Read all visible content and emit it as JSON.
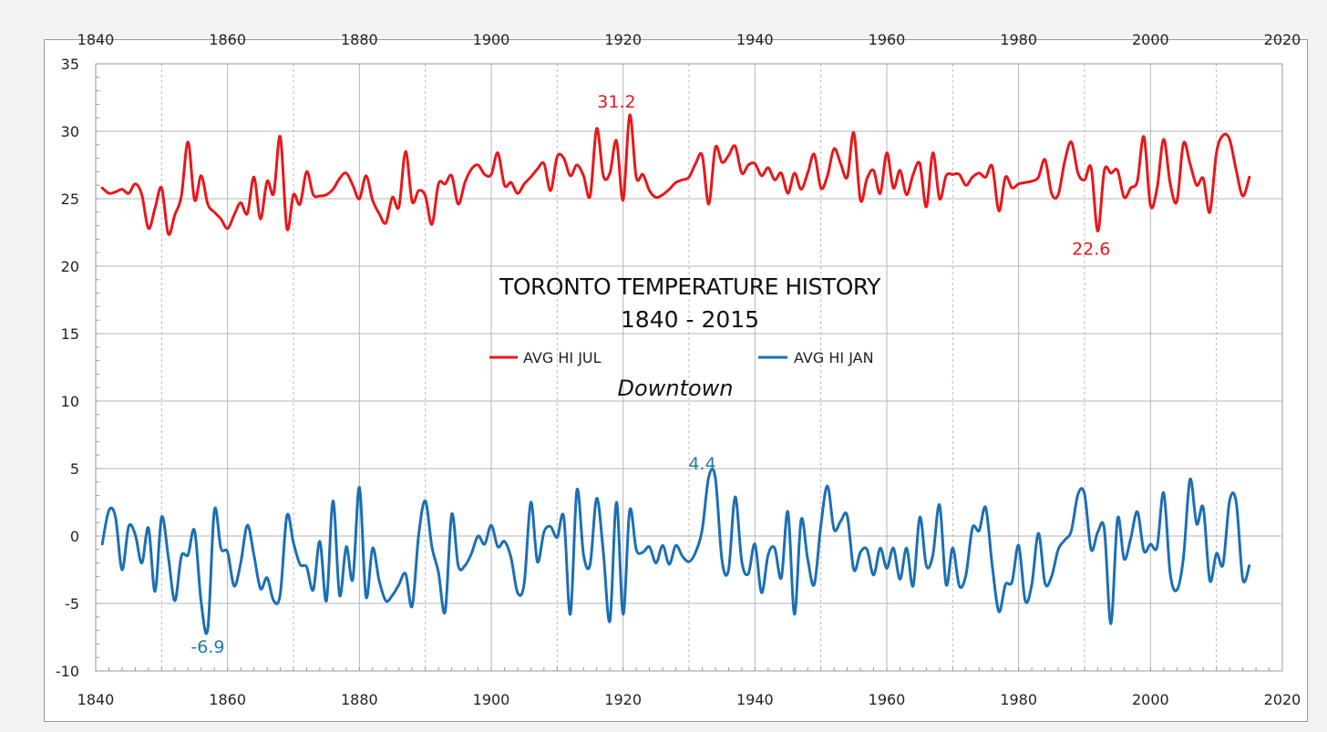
{
  "chart_data": {
    "type": "line",
    "title": "TORONTO TEMPERATURE HISTORY",
    "subtitle": "1840 - 2015",
    "location_label": "Downtown",
    "xlim": [
      1840,
      2020
    ],
    "ylim": [
      -10,
      35
    ],
    "x_ticks": [
      "1840",
      "1860",
      "1880",
      "1900",
      "1920",
      "1940",
      "1960",
      "1980",
      "2000",
      "2020"
    ],
    "y_ticks": [
      "-10",
      "-5",
      "0",
      "5",
      "10",
      "15",
      "20",
      "25",
      "30",
      "35"
    ],
    "legend": [
      "AVG HI JUL",
      "AVG HI JAN"
    ],
    "series": [
      {
        "name": "AVG HI JUL",
        "color": "#e8171b",
        "x": [
          1841,
          1842,
          1843,
          1844,
          1845,
          1846,
          1847,
          1848,
          1849,
          1850,
          1851,
          1852,
          1853,
          1854,
          1855,
          1856,
          1857,
          1858,
          1859,
          1860,
          1861,
          1862,
          1863,
          1864,
          1865,
          1866,
          1867,
          1868,
          1869,
          1870,
          1871,
          1872,
          1873,
          1874,
          1875,
          1876,
          1877,
          1878,
          1879,
          1880,
          1881,
          1882,
          1883,
          1884,
          1885,
          1886,
          1887,
          1888,
          1889,
          1890,
          1891,
          1892,
          1893,
          1894,
          1895,
          1896,
          1897,
          1898,
          1899,
          1900,
          1901,
          1902,
          1903,
          1904,
          1905,
          1906,
          1907,
          1908,
          1909,
          1910,
          1911,
          1912,
          1913,
          1914,
          1915,
          1916,
          1917,
          1918,
          1919,
          1920,
          1921,
          1922,
          1923,
          1924,
          1925,
          1926,
          1927,
          1928,
          1929,
          1930,
          1931,
          1932,
          1933,
          1934,
          1935,
          1936,
          1937,
          1938,
          1939,
          1940,
          1941,
          1942,
          1943,
          1944,
          1945,
          1946,
          1947,
          1948,
          1949,
          1950,
          1951,
          1952,
          1953,
          1954,
          1955,
          1956,
          1957,
          1958,
          1959,
          1960,
          1961,
          1962,
          1963,
          1964,
          1965,
          1966,
          1967,
          1968,
          1969,
          1970,
          1971,
          1972,
          1973,
          1974,
          1975,
          1976,
          1977,
          1978,
          1979,
          1980,
          1981,
          1982,
          1983,
          1984,
          1985,
          1986,
          1987,
          1988,
          1989,
          1990,
          1991,
          1992,
          1993,
          1994,
          1995,
          1996,
          1997,
          1998,
          1999,
          2000,
          2001,
          2002,
          2003,
          2004,
          2005,
          2006,
          2007,
          2008,
          2009,
          2010,
          2011,
          2012,
          2013,
          2014,
          2015
        ],
        "values": [
          25.8,
          25.4,
          25.5,
          25.7,
          25.4,
          26.1,
          25.3,
          22.8,
          24.3,
          25.8,
          22.4,
          23.8,
          25.2,
          29.2,
          24.9,
          26.7,
          24.6,
          24.0,
          23.5,
          22.8,
          23.8,
          24.7,
          23.9,
          26.6,
          23.5,
          26.3,
          25.4,
          29.6,
          22.8,
          25.3,
          24.6,
          27.0,
          25.3,
          25.2,
          25.3,
          25.7,
          26.5,
          26.9,
          26.0,
          25.0,
          26.7,
          24.9,
          23.9,
          23.2,
          25.1,
          24.4,
          28.5,
          24.8,
          25.6,
          25.2,
          23.1,
          26.1,
          26.1,
          26.7,
          24.6,
          26.2,
          27.2,
          27.5,
          26.8,
          26.8,
          28.4,
          26.0,
          26.2,
          25.4,
          26.1,
          26.6,
          27.2,
          27.6,
          25.6,
          28.1,
          28.0,
          26.7,
          27.5,
          26.7,
          25.2,
          30.2,
          26.7,
          26.9,
          29.3,
          24.9,
          31.2,
          26.6,
          26.8,
          25.6,
          25.1,
          25.3,
          25.7,
          26.2,
          26.4,
          26.6,
          27.6,
          28.2,
          24.6,
          28.8,
          27.7,
          28.2,
          28.9,
          26.9,
          27.5,
          27.6,
          26.7,
          27.3,
          26.4,
          26.9,
          25.4,
          26.9,
          25.7,
          26.9,
          28.3,
          25.8,
          26.7,
          28.7,
          27.6,
          26.6,
          29.9,
          24.9,
          26.5,
          27.1,
          25.4,
          28.4,
          25.8,
          27.1,
          25.3,
          26.8,
          27.6,
          24.4,
          28.4,
          25.0,
          26.7,
          26.8,
          26.8,
          26.0,
          26.6,
          26.9,
          26.6,
          27.4,
          24.1,
          26.6,
          25.8,
          26.1,
          26.2,
          26.3,
          26.6,
          27.9,
          25.4,
          25.3,
          27.8,
          29.2,
          26.9,
          26.4,
          27.3,
          22.6,
          27.1,
          26.9,
          27.1,
          25.1,
          25.8,
          26.3,
          29.6,
          24.5,
          25.8,
          29.4,
          26.1,
          24.8,
          29.1,
          27.6,
          26.0,
          26.5,
          24.0,
          28.4,
          29.7,
          29.4,
          27.1,
          25.2,
          26.6
        ]
      },
      {
        "name": "AVG HI JAN",
        "color": "#1b6fb5",
        "x": [
          1841,
          1842,
          1843,
          1844,
          1845,
          1846,
          1847,
          1848,
          1849,
          1850,
          1851,
          1852,
          1853,
          1854,
          1855,
          1856,
          1857,
          1858,
          1859,
          1860,
          1861,
          1862,
          1863,
          1864,
          1865,
          1866,
          1867,
          1868,
          1869,
          1870,
          1871,
          1872,
          1873,
          1874,
          1875,
          1876,
          1877,
          1878,
          1879,
          1880,
          1881,
          1882,
          1883,
          1884,
          1885,
          1886,
          1887,
          1888,
          1889,
          1890,
          1891,
          1892,
          1893,
          1894,
          1895,
          1896,
          1897,
          1898,
          1899,
          1900,
          1901,
          1902,
          1903,
          1904,
          1905,
          1906,
          1907,
          1908,
          1909,
          1910,
          1911,
          1912,
          1913,
          1914,
          1915,
          1916,
          1917,
          1918,
          1919,
          1920,
          1921,
          1922,
          1923,
          1924,
          1925,
          1926,
          1927,
          1928,
          1929,
          1930,
          1931,
          1932,
          1933,
          1934,
          1935,
          1936,
          1937,
          1938,
          1939,
          1940,
          1941,
          1942,
          1943,
          1944,
          1945,
          1946,
          1947,
          1948,
          1949,
          1950,
          1951,
          1952,
          1953,
          1954,
          1955,
          1956,
          1957,
          1958,
          1959,
          1960,
          1961,
          1962,
          1963,
          1964,
          1965,
          1966,
          1967,
          1968,
          1969,
          1970,
          1971,
          1972,
          1973,
          1974,
          1975,
          1976,
          1977,
          1978,
          1979,
          1980,
          1981,
          1982,
          1983,
          1984,
          1985,
          1986,
          1987,
          1988,
          1989,
          1990,
          1991,
          1992,
          1993,
          1994,
          1995,
          1996,
          1997,
          1998,
          1999,
          2000,
          2001,
          2002,
          2003,
          2004,
          2005,
          2006,
          2007,
          2008,
          2009,
          2010,
          2011,
          2012,
          2013,
          2014,
          2015
        ],
        "values": [
          -0.6,
          1.9,
          1.4,
          -2.5,
          0.7,
          0.1,
          -2.0,
          0.6,
          -4.1,
          1.4,
          -1.5,
          -4.8,
          -1.5,
          -1.4,
          0.4,
          -4.9,
          -6.9,
          1.9,
          -0.9,
          -1.2,
          -3.7,
          -2.0,
          0.8,
          -1.4,
          -3.9,
          -3.1,
          -4.8,
          -4.3,
          1.5,
          -0.5,
          -2.1,
          -2.3,
          -4.0,
          -0.4,
          -4.8,
          2.6,
          -4.4,
          -0.8,
          -3.2,
          3.6,
          -4.5,
          -0.9,
          -3.3,
          -4.8,
          -4.4,
          -3.6,
          -2.8,
          -5.2,
          0.1,
          2.6,
          -0.8,
          -2.7,
          -5.6,
          1.6,
          -2.2,
          -2.2,
          -1.3,
          0.0,
          -0.6,
          0.8,
          -0.8,
          -0.4,
          -1.6,
          -4.2,
          -3.5,
          2.5,
          -1.9,
          0.3,
          0.7,
          -0.1,
          1.4,
          -5.8,
          3.4,
          -1.4,
          -2.1,
          2.8,
          -1.2,
          -6.3,
          2.5,
          -5.8,
          1.9,
          -1.0,
          -1.2,
          -0.8,
          -2.0,
          -0.7,
          -2.1,
          -0.7,
          -1.5,
          -1.9,
          -1.2,
          0.5,
          4.4,
          4.3,
          -1.8,
          -2.5,
          2.9,
          -1.9,
          -2.8,
          -0.6,
          -4.2,
          -1.4,
          -0.9,
          -3.1,
          1.8,
          -5.8,
          1.2,
          -1.7,
          -3.6,
          0.8,
          3.7,
          0.5,
          1.1,
          1.5,
          -2.5,
          -1.2,
          -1.0,
          -2.9,
          -0.9,
          -2.4,
          -0.9,
          -3.2,
          -0.9,
          -3.7,
          1.4,
          -2.2,
          -1.4,
          2.3,
          -3.6,
          -0.9,
          -3.7,
          -2.9,
          0.6,
          0.4,
          2.1,
          -2.2,
          -5.6,
          -3.6,
          -3.4,
          -0.7,
          -4.8,
          -3.6,
          0.2,
          -3.5,
          -3.0,
          -1.0,
          -0.3,
          0.4,
          3.1,
          3.1,
          -1.0,
          0.3,
          0.5,
          -6.5,
          1.3,
          -1.7,
          -0.2,
          1.8,
          -1.1,
          -0.6,
          -0.8,
          3.2,
          -2.8,
          -4.0,
          -1.6,
          4.2,
          0.9,
          2.1,
          -3.3,
          -1.3,
          -2.1,
          2.6,
          2.5,
          -3.2,
          -2.2
        ]
      }
    ],
    "annotations": [
      {
        "text": "31.2",
        "x": 1919,
        "y": 31.2,
        "color": "#e8171b"
      },
      {
        "text": "22.6",
        "x": 1991,
        "y": 22.6,
        "color": "#e8171b"
      },
      {
        "text": "4.4",
        "x": 1932,
        "y": 4.4,
        "color": "#1e7ba6"
      },
      {
        "text": "-6.9",
        "x": 1857,
        "y": -6.9,
        "color": "#1e7ba6"
      }
    ]
  }
}
